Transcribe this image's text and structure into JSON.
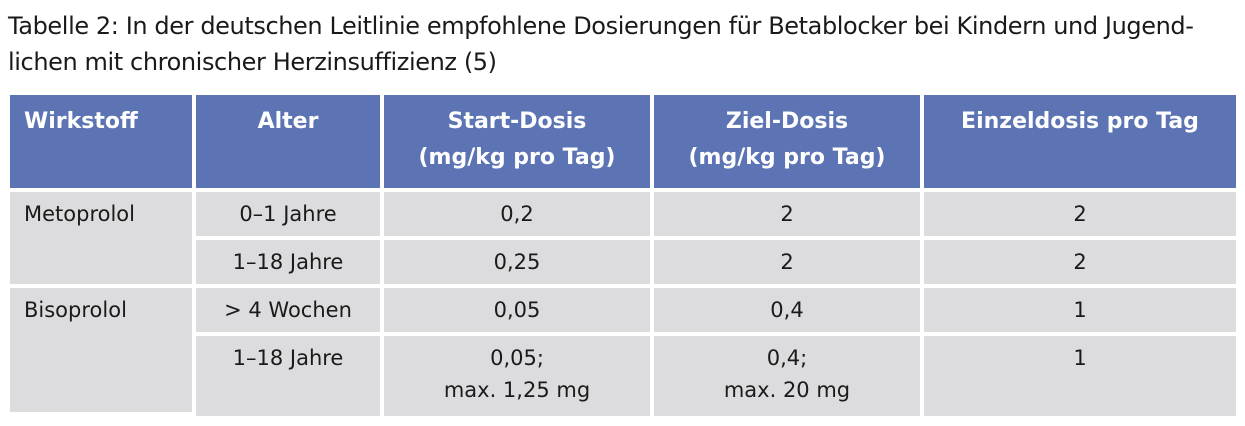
{
  "caption": {
    "line1": "Tabelle 2: In der deutschen Leitlinie empfohlene Dosierungen für Betablocker bei Kindern und Jugend-",
    "line2": "lichen mit chronischer Herzinsuffizienz (5)"
  },
  "table": {
    "headers": {
      "wirkstoff": "Wirkstoff",
      "alter": "Alter",
      "start_line1": "Start-Dosis",
      "start_line2": "(mg/kg pro Tag)",
      "ziel_line1": "Ziel-Dosis",
      "ziel_line2": "(mg/kg pro Tag)",
      "einzeldosis": "Einzeldosis pro Tag"
    },
    "groups": [
      {
        "wirkstoff": "Metoprolol",
        "rows": [
          {
            "alter": "0–1 Jahre",
            "start": "0,2",
            "ziel": "2",
            "einzel": "2"
          },
          {
            "alter": "1–18 Jahre",
            "start": "0,25",
            "ziel": "2",
            "einzel": "2"
          }
        ]
      },
      {
        "wirkstoff": "Bisoprolol",
        "rows": [
          {
            "alter": "> 4 Wochen",
            "start": "0,05",
            "ziel": "0,4",
            "einzel": "1"
          },
          {
            "alter": "1–18 Jahre",
            "start_line1": "0,05;",
            "start_line2": "max. 1,25 mg",
            "ziel_line1": "0,4;",
            "ziel_line2": "max. 20 mg",
            "einzel": "1"
          }
        ]
      }
    ]
  },
  "colors": {
    "header_bg": "#5d74b4",
    "cell_bg": "#dcdcde"
  }
}
